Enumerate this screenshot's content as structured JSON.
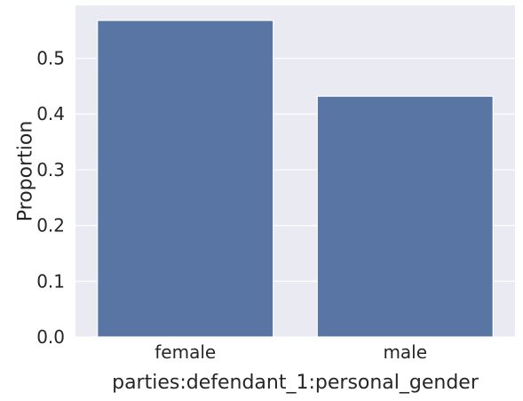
{
  "chart_data": {
    "type": "bar",
    "categories": [
      "female",
      "male"
    ],
    "values": [
      0.568,
      0.432
    ],
    "xlabel": "parties:defendant_1:personal_gender",
    "ylabel": "Proportion",
    "ylim": [
      0,
      0.595
    ],
    "yticks": [
      "0.0",
      "0.1",
      "0.2",
      "0.3",
      "0.4",
      "0.5"
    ],
    "grid": true,
    "colors": {
      "bar": "#5875a4",
      "plot_background": "#eaeaf2",
      "grid": "#ffffff"
    }
  }
}
